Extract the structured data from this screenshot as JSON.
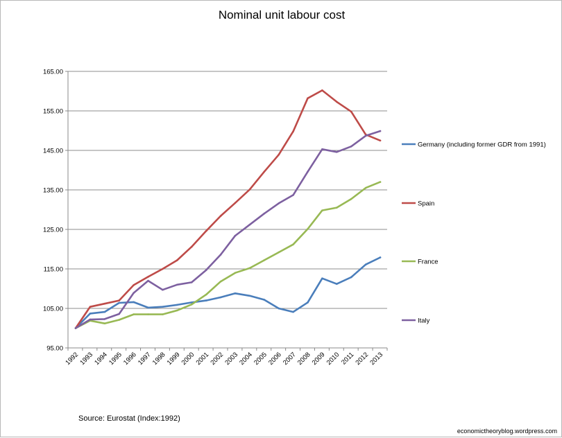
{
  "chart_data": {
    "type": "line",
    "title": "Nominal unit labour cost",
    "xlabel": "",
    "ylabel": "",
    "ylim": [
      95,
      165
    ],
    "yticks": [
      "95.00",
      "105.00",
      "115.00",
      "125.00",
      "135.00",
      "145.00",
      "155.00",
      "165.00"
    ],
    "categories": [
      "1992",
      "1993",
      "1994",
      "1995",
      "1996",
      "1997",
      "1998",
      "1999",
      "2000",
      "2001",
      "2002",
      "2003",
      "2004",
      "2005",
      "2006",
      "2007",
      "2008",
      "2009",
      "2010",
      "2011",
      "2012",
      "2013"
    ],
    "grid": true,
    "legend": "right",
    "series": [
      {
        "name": "Germany (including  former GDR from 1991)",
        "color": "#4a7ebb",
        "values": [
          100.0,
          103.7,
          104.1,
          106.4,
          106.6,
          105.2,
          105.4,
          105.9,
          106.5,
          107.0,
          107.8,
          108.8,
          108.2,
          107.2,
          105.0,
          104.1,
          106.5,
          112.6,
          111.2,
          112.9,
          116.1,
          117.9
        ]
      },
      {
        "name": "Spain",
        "color": "#be4b48",
        "values": [
          100.0,
          105.4,
          106.2,
          107.0,
          110.9,
          113.0,
          115.0,
          117.2,
          120.6,
          124.6,
          128.4,
          131.7,
          135.1,
          139.6,
          143.9,
          149.8,
          158.2,
          160.2,
          157.3,
          154.8,
          149.0,
          147.5
        ]
      },
      {
        "name": "France",
        "color": "#98b954",
        "values": [
          100.0,
          101.9,
          101.2,
          102.1,
          103.5,
          103.5,
          103.5,
          104.5,
          106.0,
          108.5,
          111.8,
          114.0,
          115.2,
          117.2,
          119.2,
          121.2,
          125.1,
          129.8,
          130.5,
          132.7,
          135.5,
          137.0
        ]
      },
      {
        "name": "Italy",
        "color": "#7d60a0",
        "values": [
          100.0,
          102.2,
          102.3,
          103.6,
          108.9,
          112.0,
          109.7,
          111.0,
          111.6,
          114.7,
          118.6,
          123.4,
          126.2,
          129.0,
          131.6,
          133.7,
          139.6,
          145.3,
          144.6,
          146.0,
          148.7,
          149.9
        ]
      }
    ],
    "source": "Source: Eurostat (Index:1992)",
    "credit": "economictheoryblog.wordpress.com"
  }
}
